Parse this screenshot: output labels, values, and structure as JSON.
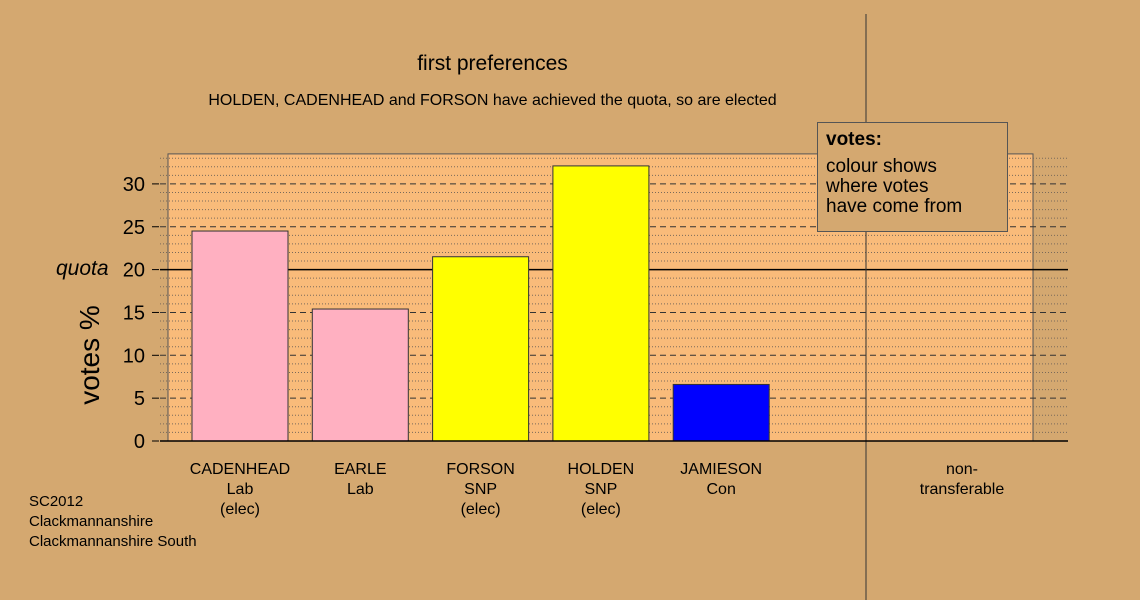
{
  "chart_data": {
    "type": "bar",
    "title": "first preferences",
    "subtitle": "HOLDEN, CADENHEAD and FORSON have achieved the quota, so are elected",
    "ylabel": "votes %",
    "ylim": [
      0,
      33.5
    ],
    "yticks": [
      "0",
      "5",
      "10",
      "15",
      "20",
      "25",
      "30"
    ],
    "quota_value": 20,
    "quota_label": "quota",
    "grid": true,
    "categories": [
      {
        "lines": [
          "CADENHEAD",
          "Lab",
          "(elec)"
        ],
        "value": 24.5,
        "color": "#FFB0C1"
      },
      {
        "lines": [
          "EARLE",
          "Lab"
        ],
        "value": 15.4,
        "color": "#FFB0C1"
      },
      {
        "lines": [
          "FORSON",
          "SNP",
          "(elec)"
        ],
        "value": 21.5,
        "color": "#FFFF00"
      },
      {
        "lines": [
          "HOLDEN",
          "SNP",
          "(elec)"
        ],
        "value": 32.1,
        "color": "#FFFF00"
      },
      {
        "lines": [
          "JAMIESON",
          "Con"
        ],
        "value": 6.6,
        "color": "#0000FF"
      }
    ],
    "extra_category": {
      "lines": [
        "non-",
        "transferable"
      ],
      "value": 0
    },
    "legend": {
      "title": "votes:",
      "lines": [
        "colour shows",
        "where votes",
        "have come from"
      ]
    }
  },
  "footer": [
    "SC2012",
    "Clackmannanshire",
    "Clackmannanshire South"
  ],
  "colors": {
    "background": "#D4A870",
    "panel": "#F9BB7A"
  }
}
